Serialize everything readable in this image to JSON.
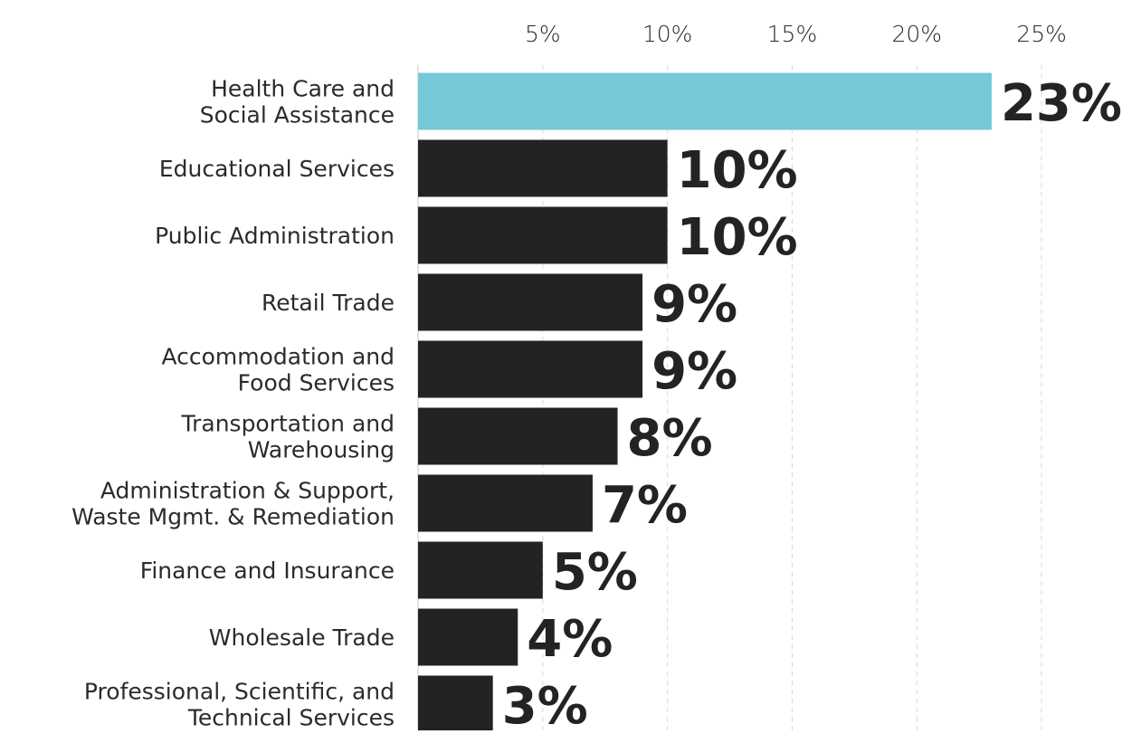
{
  "chart_data": {
    "type": "bar",
    "orientation": "horizontal",
    "title": "",
    "xlabel": "",
    "ylabel": "",
    "xlim": [
      0,
      27.5
    ],
    "x_ticks": [
      5,
      10,
      15,
      20,
      25
    ],
    "x_tick_labels": [
      "5%",
      "10%",
      "15%",
      "20%",
      "25%"
    ],
    "grid": true,
    "legend": "none",
    "categories": [
      [
        "Health Care and",
        "Social Assistance"
      ],
      [
        "Educational Services"
      ],
      [
        "Public Administration"
      ],
      [
        "Retail Trade"
      ],
      [
        "Accommodation and",
        "Food Services"
      ],
      [
        "Transportation and",
        "Warehousing"
      ],
      [
        "Administration & Support,",
        "Waste Mgmt. & Remediation"
      ],
      [
        "Finance and Insurance"
      ],
      [
        "Wholesale Trade"
      ],
      [
        "Professional, Scientific, and",
        "Technical Services"
      ]
    ],
    "values": [
      23,
      10,
      10,
      9,
      9,
      8,
      7,
      5,
      4,
      3
    ],
    "value_labels": [
      "23%",
      "10%",
      "10%",
      "9%",
      "9%",
      "8%",
      "7%",
      "5%",
      "4%",
      "3%"
    ],
    "colors": {
      "highlight": "#75c8d8",
      "default": "#232326"
    },
    "highlight_index": 0
  }
}
